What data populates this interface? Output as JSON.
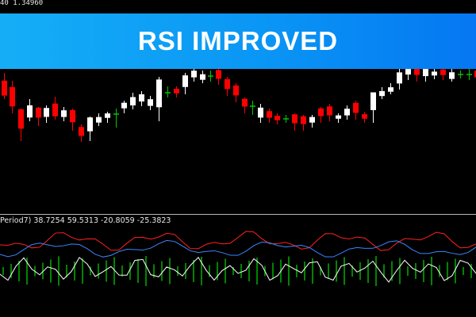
{
  "quote_text": "40 1.34960",
  "banner_title": "RSI IMPROVED",
  "indicator_label": "Period7) 38.7254 59.5313 -20.8059 -25.3823",
  "colors": {
    "banner_start": "#15aef6",
    "banner_end": "#0577f2",
    "bull_candle": "#ffffff",
    "bear_candle": "#ff0000",
    "doji_candle": "#00c800",
    "line_red": "#ff2020",
    "line_blue": "#3a86ff",
    "line_white": "#ffffff",
    "histogram": "#00b000"
  }
}
